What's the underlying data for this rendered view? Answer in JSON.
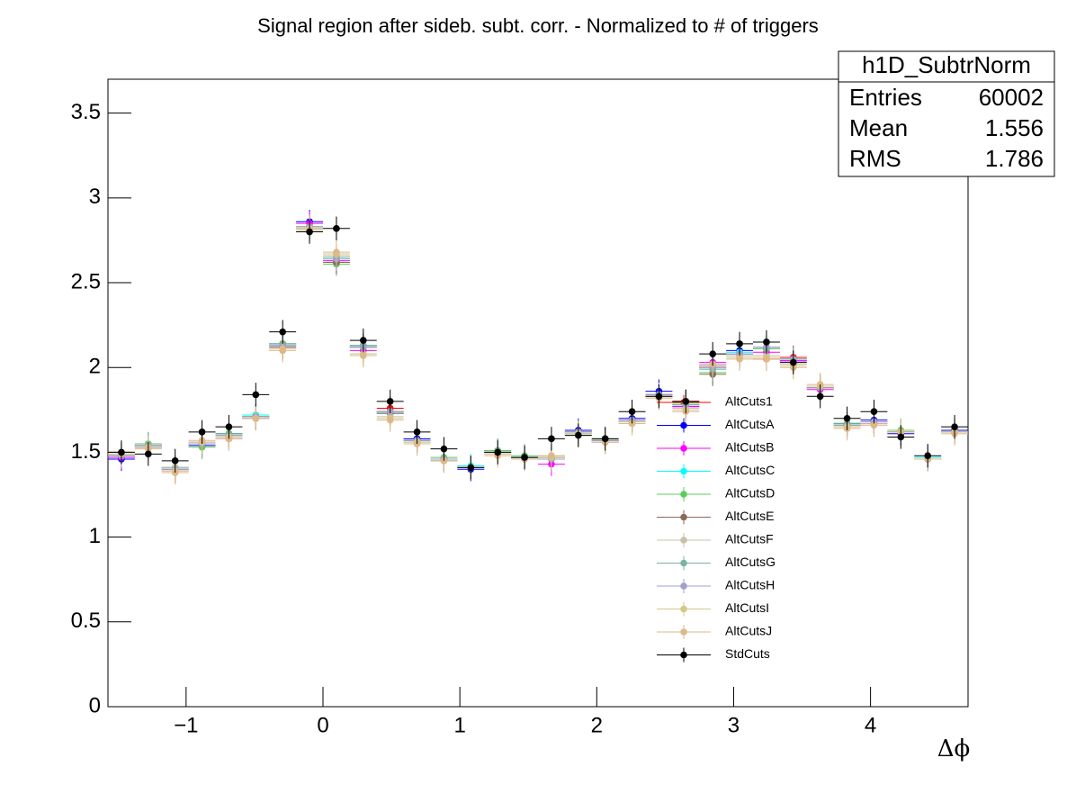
{
  "chart_data": {
    "type": "errorbar_points",
    "title": "Signal region after sideb. subt. corr. - Normalized to # of triggers",
    "x_label": "Δϕ",
    "xlim": [
      -1.5708,
      4.7124
    ],
    "ylim": [
      0,
      3.7
    ],
    "xticks": [
      -1,
      0,
      1,
      2,
      3,
      4
    ],
    "yticks": [
      0,
      0.5,
      1,
      1.5,
      2,
      2.5,
      3,
      3.5
    ],
    "x": [
      -1.4726,
      -1.2763,
      -1.0799,
      -0.8836,
      -0.6872,
      -0.4909,
      -0.2945,
      -0.0982,
      0.0982,
      0.2945,
      0.4909,
      0.6872,
      0.8836,
      1.0799,
      1.2763,
      1.4726,
      1.669,
      1.8653,
      2.0617,
      2.258,
      2.4544,
      2.6507,
      2.8471,
      3.0434,
      3.2398,
      3.4361,
      3.6325,
      3.8288,
      4.0252,
      4.2215,
      4.4179,
      4.6142
    ],
    "xerr": 0.0982,
    "series": [
      {
        "name": "AltCuts1",
        "color": "#ff0000",
        "yerr": 0.07,
        "values": [
          1.48,
          1.54,
          1.4,
          1.55,
          1.6,
          1.71,
          2.13,
          2.83,
          2.62,
          2.12,
          1.76,
          1.57,
          1.46,
          1.41,
          1.5,
          1.47,
          1.46,
          1.62,
          1.57,
          1.69,
          1.84,
          1.8,
          2.0,
          2.08,
          2.05,
          2.06,
          1.88,
          1.66,
          1.68,
          1.62,
          1.46,
          1.62
        ]
      },
      {
        "name": "AltCutsA",
        "color": "#0000ff",
        "yerr": 0.07,
        "values": [
          1.46,
          1.53,
          1.41,
          1.54,
          1.61,
          1.71,
          2.14,
          2.86,
          2.62,
          2.13,
          1.73,
          1.58,
          1.45,
          1.4,
          1.51,
          1.47,
          1.47,
          1.63,
          1.57,
          1.7,
          1.86,
          1.77,
          2.01,
          2.1,
          2.11,
          2.04,
          1.88,
          1.67,
          1.69,
          1.61,
          1.46,
          1.63
        ]
      },
      {
        "name": "AltCutsB",
        "color": "#ff00ff",
        "yerr": 0.07,
        "values": [
          1.47,
          1.54,
          1.39,
          1.56,
          1.58,
          1.7,
          2.12,
          2.85,
          2.63,
          2.1,
          1.74,
          1.57,
          1.46,
          1.41,
          1.49,
          1.47,
          1.43,
          1.62,
          1.56,
          1.69,
          1.83,
          1.77,
          2.03,
          2.07,
          2.09,
          2.04,
          1.87,
          1.66,
          1.67,
          1.62,
          1.46,
          1.62
        ]
      },
      {
        "name": "AltCutsC",
        "color": "#00ffff",
        "yerr": 0.07,
        "values": [
          1.48,
          1.55,
          1.4,
          1.55,
          1.6,
          1.72,
          2.13,
          2.82,
          2.64,
          2.12,
          1.73,
          1.56,
          1.45,
          1.42,
          1.5,
          1.46,
          1.46,
          1.61,
          1.57,
          1.68,
          1.84,
          1.78,
          1.99,
          2.09,
          2.12,
          2.05,
          1.89,
          1.66,
          1.68,
          1.62,
          1.47,
          1.62
        ]
      },
      {
        "name": "AltCutsD",
        "color": "#5ccb5c",
        "yerr": 0.07,
        "values": [
          1.49,
          1.55,
          1.41,
          1.53,
          1.61,
          1.7,
          2.14,
          2.83,
          2.61,
          2.13,
          1.74,
          1.57,
          1.47,
          1.41,
          1.51,
          1.48,
          1.47,
          1.62,
          1.58,
          1.69,
          1.84,
          1.79,
          1.97,
          2.07,
          2.11,
          2.05,
          1.88,
          1.67,
          1.68,
          1.63,
          1.46,
          1.62
        ]
      },
      {
        "name": "AltCutsE",
        "color": "#8c6a5a",
        "yerr": 0.07,
        "values": [
          1.48,
          1.54,
          1.4,
          1.55,
          1.59,
          1.71,
          2.12,
          2.82,
          2.62,
          2.12,
          1.73,
          1.57,
          1.46,
          1.41,
          1.5,
          1.47,
          1.46,
          1.62,
          1.57,
          1.69,
          1.84,
          1.78,
          1.96,
          2.08,
          2.12,
          2.05,
          1.88,
          1.66,
          1.68,
          1.62,
          1.46,
          1.62
        ]
      },
      {
        "name": "AltCutsF",
        "color": "#c8c0a8",
        "yerr": 0.07,
        "values": [
          1.49,
          1.54,
          1.41,
          1.56,
          1.6,
          1.71,
          2.11,
          2.82,
          2.66,
          2.08,
          1.71,
          1.56,
          1.46,
          1.41,
          1.49,
          1.47,
          1.48,
          1.61,
          1.56,
          1.68,
          1.83,
          1.76,
          2.01,
          2.07,
          2.07,
          2.02,
          1.89,
          1.65,
          1.67,
          1.62,
          1.46,
          1.62
        ]
      },
      {
        "name": "AltCutsG",
        "color": "#78b4a0",
        "yerr": 0.07,
        "values": [
          1.48,
          1.54,
          1.4,
          1.55,
          1.6,
          1.71,
          2.13,
          2.83,
          2.65,
          2.13,
          1.74,
          1.57,
          1.46,
          1.41,
          1.5,
          1.47,
          1.46,
          1.62,
          1.57,
          1.69,
          1.84,
          1.78,
          1.99,
          2.08,
          2.12,
          2.05,
          1.88,
          1.66,
          1.68,
          1.62,
          1.46,
          1.62
        ]
      },
      {
        "name": "AltCutsH",
        "color": "#a0a0c8",
        "yerr": 0.07,
        "values": [
          1.48,
          1.54,
          1.4,
          1.55,
          1.6,
          1.71,
          2.13,
          2.83,
          2.64,
          2.12,
          1.74,
          1.57,
          1.46,
          1.41,
          1.5,
          1.47,
          1.46,
          1.62,
          1.57,
          1.69,
          1.84,
          1.78,
          2.0,
          2.08,
          2.12,
          2.05,
          1.88,
          1.66,
          1.68,
          1.62,
          1.46,
          1.62
        ]
      },
      {
        "name": "AltCutsI",
        "color": "#d4c888",
        "yerr": 0.07,
        "values": [
          1.49,
          1.53,
          1.39,
          1.56,
          1.59,
          1.7,
          2.11,
          2.82,
          2.67,
          2.08,
          1.7,
          1.56,
          1.45,
          1.41,
          1.49,
          1.46,
          1.47,
          1.61,
          1.56,
          1.67,
          1.82,
          1.75,
          2.02,
          2.06,
          2.06,
          2.01,
          1.89,
          1.65,
          1.66,
          1.62,
          1.46,
          1.62
        ]
      },
      {
        "name": "AltCutsJ",
        "color": "#deb887",
        "yerr": 0.07,
        "values": [
          1.5,
          1.52,
          1.38,
          1.57,
          1.58,
          1.7,
          2.1,
          2.81,
          2.68,
          2.07,
          1.69,
          1.55,
          1.45,
          1.41,
          1.48,
          1.46,
          1.48,
          1.6,
          1.56,
          1.67,
          1.82,
          1.74,
          2.02,
          2.05,
          2.05,
          2.0,
          1.9,
          1.64,
          1.66,
          1.62,
          1.46,
          1.61
        ]
      },
      {
        "name": "StdCuts",
        "color": "#000000",
        "yerr": 0.07,
        "values": [
          1.5,
          1.49,
          1.45,
          1.62,
          1.65,
          1.84,
          2.21,
          2.8,
          2.82,
          2.16,
          1.8,
          1.62,
          1.52,
          1.41,
          1.5,
          1.47,
          1.58,
          1.6,
          1.58,
          1.74,
          1.83,
          1.8,
          2.08,
          2.14,
          2.15,
          2.03,
          1.83,
          1.7,
          1.74,
          1.59,
          1.48,
          1.65
        ]
      }
    ],
    "stats": {
      "title": "h1D_SubtrNorm",
      "rows": [
        {
          "label": "Entries",
          "value": 60002
        },
        {
          "label": "Mean",
          "value": 1.556
        },
        {
          "label": "RMS",
          "value": 1.786
        }
      ]
    }
  }
}
